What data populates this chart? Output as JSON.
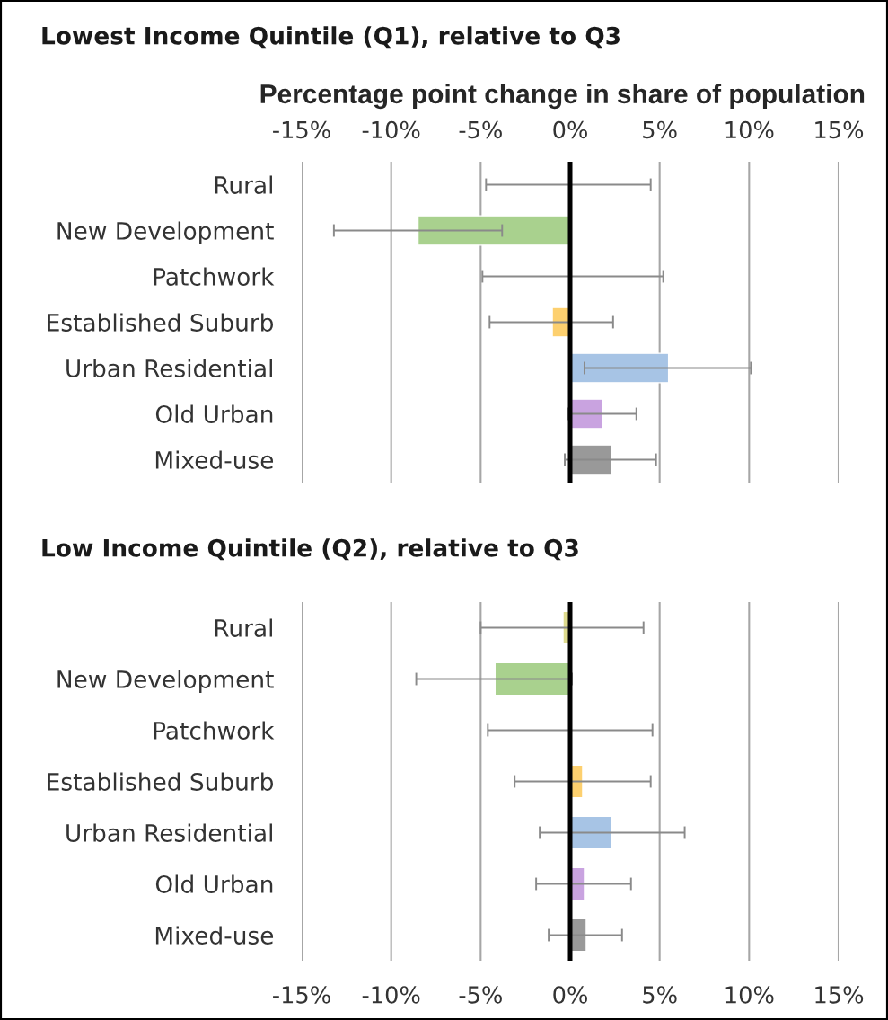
{
  "chart_data": [
    {
      "type": "bar",
      "orientation": "horizontal",
      "title": "Lowest Income Quintile (Q1), relative to Q3",
      "x2label": "Percentage point change in share of population",
      "categories": [
        "Rural",
        "New Development",
        "Patchwork",
        "Established Suburb",
        "Urban Residential",
        "Old Urban",
        "Mixed-use"
      ],
      "series": [
        {
          "axis": "x2",
          "values": [
            0,
            -8.5,
            0,
            -1.0,
            5.5,
            1.8,
            2.3
          ],
          "colors": [
            null,
            "#a9d18e",
            null,
            "#fdd06f",
            "#a7c4e5",
            "#c9a3e0",
            "#999999"
          ],
          "errors": [
            [
              -4.7,
              4.5
            ],
            [
              -13.2,
              -3.8
            ],
            [
              -4.9,
              5.2
            ],
            [
              -4.5,
              2.4
            ],
            [
              0.8,
              10.1
            ],
            [
              -0.1,
              3.7
            ],
            [
              -0.3,
              4.8
            ]
          ]
        }
      ],
      "x2lim": [
        -15,
        15
      ],
      "x2ticks": [
        {
          "value": -15,
          "label": "-15%"
        },
        {
          "value": -10,
          "label": "-10%"
        },
        {
          "value": -5,
          "label": "-5%"
        },
        {
          "value": 0,
          "label": "0%"
        },
        {
          "value": 5,
          "label": "5%"
        },
        {
          "value": 10,
          "label": "10%"
        },
        {
          "value": 15,
          "label": "15%"
        }
      ],
      "grid": "x",
      "ref_lines": [
        {
          "axis": "x2",
          "value": 0,
          "color": "#000000"
        }
      ]
    },
    {
      "type": "bar",
      "orientation": "horizontal",
      "title": "Low Income Quintile (Q2), relative to Q3",
      "categories": [
        "Rural",
        "New Development",
        "Patchwork",
        "Established Suburb",
        "Urban Residential",
        "Old Urban",
        "Mixed-use"
      ],
      "series": [
        {
          "values": [
            -0.4,
            -4.2,
            0,
            0.7,
            2.3,
            0.8,
            0.9
          ],
          "colors": [
            "#dedb8e",
            "#a9d18e",
            null,
            "#fdd06f",
            "#a7c4e5",
            "#c9a3e0",
            "#999999"
          ],
          "errors": [
            [
              -5.0,
              4.1
            ],
            [
              -8.6,
              0.1
            ],
            [
              -4.6,
              4.6
            ],
            [
              -3.1,
              4.5
            ],
            [
              -1.7,
              6.4
            ],
            [
              -1.9,
              3.4
            ],
            [
              -1.2,
              2.9
            ]
          ]
        }
      ],
      "xlim": [
        -15,
        15
      ],
      "xticks": [
        {
          "value": -15,
          "label": "-15%"
        },
        {
          "value": -10,
          "label": "-10%"
        },
        {
          "value": -5,
          "label": "-5%"
        },
        {
          "value": 0,
          "label": "0%"
        },
        {
          "value": 5,
          "label": "5%"
        },
        {
          "value": 10,
          "label": "10%"
        },
        {
          "value": 15,
          "label": "15%"
        }
      ],
      "grid": "x",
      "ref_lines": [
        {
          "axis": "x",
          "value": 0,
          "color": "#000000"
        }
      ]
    }
  ]
}
